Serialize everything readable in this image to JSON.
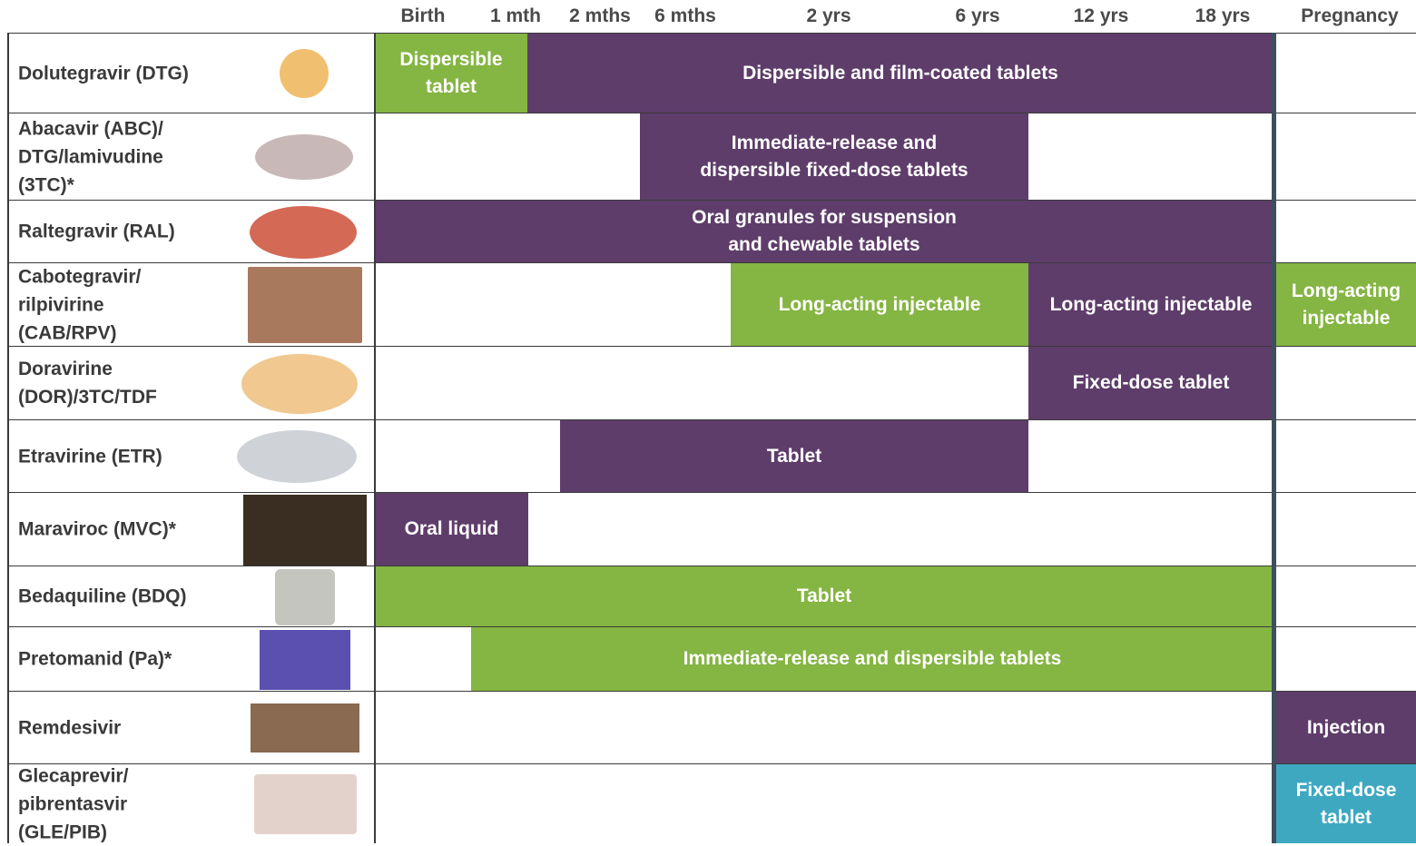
{
  "header": {
    "columns": [
      "Birth",
      "1 mth",
      "2 mths",
      "6 mths",
      "2 yrs",
      "6 yrs",
      "12 yrs",
      "18 yrs",
      "Pregnancy"
    ]
  },
  "rows": [
    {
      "drug": "Dolutegravir (DTG)",
      "bars": [
        {
          "text": "Dispersible\ntablet",
          "color": "#85b543"
        },
        {
          "text": "Dispersible and film-coated tablets",
          "color": "#5e3d6a"
        }
      ]
    },
    {
      "drug": "Abacavir (ABC)/\nDTG/lamivudine\n(3TC)*",
      "bars": [
        {
          "text": "Immediate-release and\ndispersible fixed-dose tablets",
          "color": "#5e3d6a"
        }
      ]
    },
    {
      "drug": "Raltegravir (RAL)",
      "bars": [
        {
          "text": "Oral granules for suspension\nand chewable tablets",
          "color": "#5e3d6a"
        }
      ]
    },
    {
      "drug": "Cabotegravir/\nrilpivirine\n(CAB/RPV)",
      "bars": [
        {
          "text": "Long-acting injectable",
          "color": "#85b543"
        },
        {
          "text": "Long-acting injectable",
          "color": "#5e3d6a"
        },
        {
          "text": "Long-acting\ninjectable",
          "color": "#85b543"
        }
      ]
    },
    {
      "drug": "Doravirine\n(DOR)/3TC/TDF",
      "bars": [
        {
          "text": "Fixed-dose tablet",
          "color": "#5e3d6a"
        }
      ]
    },
    {
      "drug": "Etravirine (ETR)",
      "bars": [
        {
          "text": "Tablet",
          "color": "#5e3d6a"
        }
      ]
    },
    {
      "drug": "Maraviroc (MVC)*",
      "bars": [
        {
          "text": "Oral liquid",
          "color": "#5e3d6a"
        }
      ]
    },
    {
      "drug": "Bedaquiline (BDQ)",
      "bars": [
        {
          "text": "Tablet",
          "color": "#85b543"
        }
      ]
    },
    {
      "drug": "Pretomanid (Pa)*",
      "bars": [
        {
          "text": "Immediate-release and dispersible tablets",
          "color": "#85b543"
        }
      ]
    },
    {
      "drug": "Remdesivir",
      "bars": [
        {
          "text": "Injection",
          "color": "#5e3d6a"
        }
      ]
    },
    {
      "drug": "Glecaprevir/\npibrentasvir\n(GLE/PIB)",
      "bars": [
        {
          "text": "Fixed-dose\ntablet",
          "color": "#3ea8c1"
        }
      ]
    }
  ]
}
